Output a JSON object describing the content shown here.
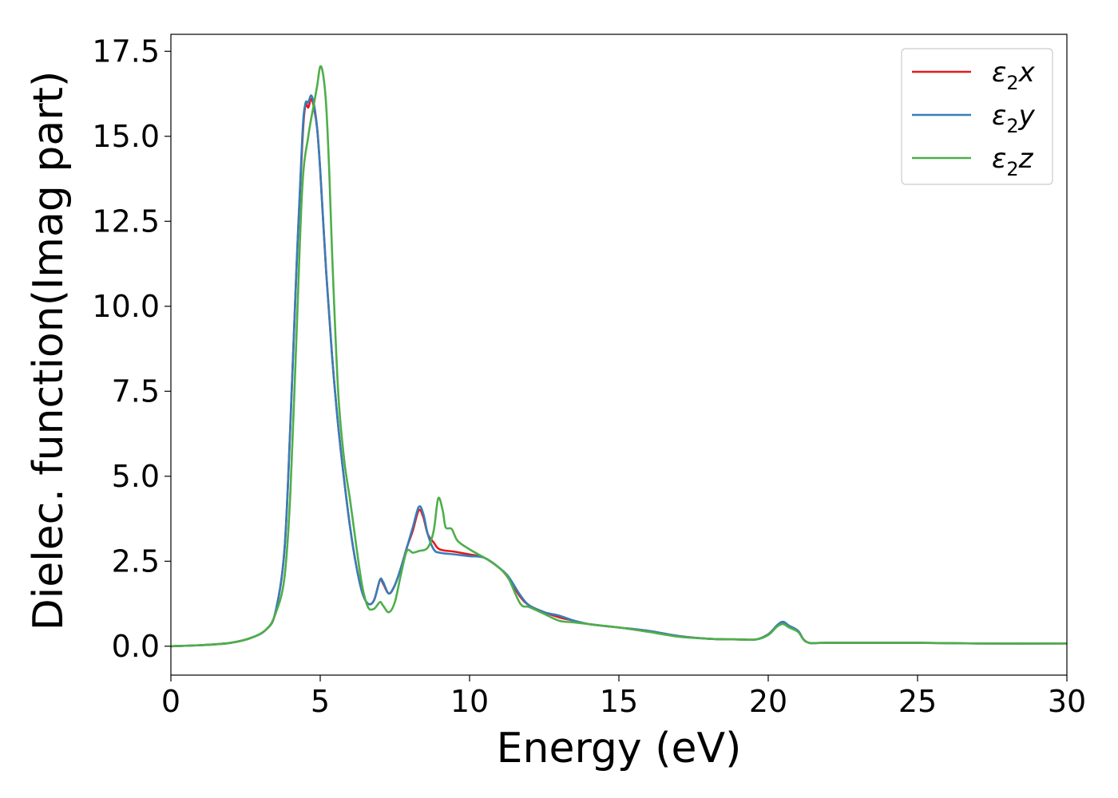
{
  "chart_data": {
    "type": "line",
    "xlabel": "Energy (eV)",
    "ylabel": "Dielec. function(Imag part)",
    "xlim": [
      0,
      30
    ],
    "ylim": [
      -0.85,
      18.0
    ],
    "xticks": [
      0,
      5,
      10,
      15,
      20,
      25,
      30
    ],
    "xtick_labels": [
      "0",
      "5",
      "10",
      "15",
      "20",
      "25",
      "30"
    ],
    "yticks": [
      0.0,
      2.5,
      5.0,
      7.5,
      10.0,
      12.5,
      15.0,
      17.5
    ],
    "ytick_labels": [
      "0.0",
      "2.5",
      "5.0",
      "7.5",
      "10.0",
      "12.5",
      "15.0",
      "17.5"
    ],
    "grid": false,
    "legend_position": "top-right",
    "series": [
      {
        "name": "ε2x",
        "legend_main": "ε",
        "legend_sub": "2",
        "legend_suffix": "x",
        "color": "#e41a1c",
        "points": [
          [
            0,
            0.0
          ],
          [
            1,
            0.03
          ],
          [
            2,
            0.1
          ],
          [
            2.7,
            0.25
          ],
          [
            3.2,
            0.5
          ],
          [
            3.5,
            1.0
          ],
          [
            3.8,
            2.8
          ],
          [
            4.0,
            6.5
          ],
          [
            4.2,
            11.0
          ],
          [
            4.4,
            14.8
          ],
          [
            4.5,
            15.9
          ],
          [
            4.6,
            15.85
          ],
          [
            4.7,
            16.1
          ],
          [
            4.8,
            15.8
          ],
          [
            4.9,
            15.2
          ],
          [
            5.0,
            14.0
          ],
          [
            5.2,
            11.0
          ],
          [
            5.4,
            8.5
          ],
          [
            5.6,
            6.5
          ],
          [
            5.8,
            4.9
          ],
          [
            6.0,
            3.5
          ],
          [
            6.2,
            2.4
          ],
          [
            6.4,
            1.6
          ],
          [
            6.6,
            1.25
          ],
          [
            6.8,
            1.35
          ],
          [
            7.0,
            1.95
          ],
          [
            7.1,
            1.85
          ],
          [
            7.3,
            1.55
          ],
          [
            7.5,
            1.8
          ],
          [
            7.7,
            2.3
          ],
          [
            7.9,
            2.9
          ],
          [
            8.1,
            3.4
          ],
          [
            8.3,
            4.0
          ],
          [
            8.45,
            3.8
          ],
          [
            8.6,
            3.3
          ],
          [
            8.8,
            3.05
          ],
          [
            9.0,
            2.85
          ],
          [
            9.5,
            2.78
          ],
          [
            10.0,
            2.7
          ],
          [
            10.5,
            2.6
          ],
          [
            11.0,
            2.3
          ],
          [
            11.3,
            2.0
          ],
          [
            11.7,
            1.45
          ],
          [
            12.0,
            1.2
          ],
          [
            12.5,
            1.0
          ],
          [
            13.0,
            0.85
          ],
          [
            13.5,
            0.75
          ],
          [
            14.0,
            0.65
          ],
          [
            15.0,
            0.55
          ],
          [
            16.0,
            0.45
          ],
          [
            17.0,
            0.3
          ],
          [
            18.0,
            0.22
          ],
          [
            19.0,
            0.2
          ],
          [
            19.6,
            0.2
          ],
          [
            20.0,
            0.35
          ],
          [
            20.3,
            0.6
          ],
          [
            20.5,
            0.7
          ],
          [
            20.7,
            0.6
          ],
          [
            21.0,
            0.45
          ],
          [
            21.3,
            0.12
          ],
          [
            22.0,
            0.1
          ],
          [
            25.0,
            0.1
          ],
          [
            27.0,
            0.08
          ],
          [
            30.0,
            0.08
          ]
        ]
      },
      {
        "name": "ε2y",
        "legend_main": "ε",
        "legend_sub": "2",
        "legend_suffix": "y",
        "color": "#377eb8",
        "points": [
          [
            0,
            0.0
          ],
          [
            1,
            0.03
          ],
          [
            2,
            0.1
          ],
          [
            2.7,
            0.25
          ],
          [
            3.2,
            0.5
          ],
          [
            3.5,
            1.0
          ],
          [
            3.8,
            2.8
          ],
          [
            4.0,
            6.5
          ],
          [
            4.2,
            11.0
          ],
          [
            4.4,
            15.0
          ],
          [
            4.5,
            15.95
          ],
          [
            4.6,
            16.0
          ],
          [
            4.7,
            16.2
          ],
          [
            4.8,
            15.9
          ],
          [
            4.9,
            15.2
          ],
          [
            5.0,
            14.0
          ],
          [
            5.2,
            11.0
          ],
          [
            5.4,
            8.5
          ],
          [
            5.6,
            6.5
          ],
          [
            5.8,
            4.9
          ],
          [
            6.0,
            3.5
          ],
          [
            6.2,
            2.4
          ],
          [
            6.4,
            1.6
          ],
          [
            6.6,
            1.25
          ],
          [
            6.8,
            1.35
          ],
          [
            7.0,
            1.95
          ],
          [
            7.1,
            1.9
          ],
          [
            7.3,
            1.55
          ],
          [
            7.5,
            1.8
          ],
          [
            7.7,
            2.3
          ],
          [
            7.9,
            2.9
          ],
          [
            8.1,
            3.5
          ],
          [
            8.3,
            4.1
          ],
          [
            8.45,
            3.9
          ],
          [
            8.6,
            3.3
          ],
          [
            8.8,
            2.85
          ],
          [
            9.0,
            2.75
          ],
          [
            9.5,
            2.7
          ],
          [
            10.0,
            2.65
          ],
          [
            10.5,
            2.6
          ],
          [
            11.0,
            2.3
          ],
          [
            11.3,
            2.05
          ],
          [
            11.7,
            1.5
          ],
          [
            12.0,
            1.2
          ],
          [
            12.5,
            1.0
          ],
          [
            13.0,
            0.9
          ],
          [
            13.5,
            0.75
          ],
          [
            14.0,
            0.65
          ],
          [
            15.0,
            0.55
          ],
          [
            16.0,
            0.45
          ],
          [
            17.0,
            0.3
          ],
          [
            18.0,
            0.22
          ],
          [
            19.0,
            0.2
          ],
          [
            19.6,
            0.2
          ],
          [
            20.0,
            0.35
          ],
          [
            20.3,
            0.62
          ],
          [
            20.5,
            0.72
          ],
          [
            20.7,
            0.6
          ],
          [
            21.0,
            0.45
          ],
          [
            21.3,
            0.12
          ],
          [
            22.0,
            0.1
          ],
          [
            25.0,
            0.1
          ],
          [
            27.0,
            0.08
          ],
          [
            30.0,
            0.08
          ]
        ]
      },
      {
        "name": "ε2z",
        "legend_main": "ε",
        "legend_sub": "2",
        "legend_suffix": "z",
        "color": "#4daf4a",
        "points": [
          [
            0,
            0.0
          ],
          [
            1,
            0.03
          ],
          [
            2,
            0.1
          ],
          [
            2.7,
            0.25
          ],
          [
            3.2,
            0.5
          ],
          [
            3.5,
            0.95
          ],
          [
            3.8,
            2.0
          ],
          [
            4.0,
            4.5
          ],
          [
            4.2,
            9.0
          ],
          [
            4.4,
            13.5
          ],
          [
            4.6,
            15.0
          ],
          [
            4.8,
            16.0
          ],
          [
            4.9,
            16.5
          ],
          [
            5.0,
            17.05
          ],
          [
            5.1,
            16.8
          ],
          [
            5.2,
            15.9
          ],
          [
            5.3,
            14.0
          ],
          [
            5.4,
            11.5
          ],
          [
            5.6,
            7.5
          ],
          [
            5.8,
            5.5
          ],
          [
            6.0,
            4.3
          ],
          [
            6.2,
            3.0
          ],
          [
            6.4,
            1.8
          ],
          [
            6.6,
            1.15
          ],
          [
            6.8,
            1.1
          ],
          [
            7.0,
            1.3
          ],
          [
            7.1,
            1.2
          ],
          [
            7.3,
            1.0
          ],
          [
            7.5,
            1.3
          ],
          [
            7.7,
            2.1
          ],
          [
            7.9,
            2.8
          ],
          [
            8.1,
            2.75
          ],
          [
            8.3,
            2.8
          ],
          [
            8.6,
            2.9
          ],
          [
            8.8,
            3.4
          ],
          [
            8.95,
            4.35
          ],
          [
            9.1,
            4.0
          ],
          [
            9.2,
            3.5
          ],
          [
            9.4,
            3.45
          ],
          [
            9.6,
            3.1
          ],
          [
            10.0,
            2.85
          ],
          [
            10.3,
            2.7
          ],
          [
            10.6,
            2.55
          ],
          [
            11.0,
            2.3
          ],
          [
            11.3,
            2.0
          ],
          [
            11.7,
            1.25
          ],
          [
            12.0,
            1.15
          ],
          [
            12.5,
            0.95
          ],
          [
            13.0,
            0.75
          ],
          [
            13.5,
            0.7
          ],
          [
            14.0,
            0.65
          ],
          [
            15.0,
            0.55
          ],
          [
            16.0,
            0.42
          ],
          [
            17.0,
            0.28
          ],
          [
            18.0,
            0.22
          ],
          [
            19.0,
            0.2
          ],
          [
            19.6,
            0.2
          ],
          [
            20.0,
            0.33
          ],
          [
            20.3,
            0.58
          ],
          [
            20.5,
            0.65
          ],
          [
            20.7,
            0.55
          ],
          [
            21.0,
            0.42
          ],
          [
            21.3,
            0.12
          ],
          [
            22.0,
            0.1
          ],
          [
            25.0,
            0.1
          ],
          [
            27.0,
            0.08
          ],
          [
            30.0,
            0.08
          ]
        ]
      }
    ]
  }
}
